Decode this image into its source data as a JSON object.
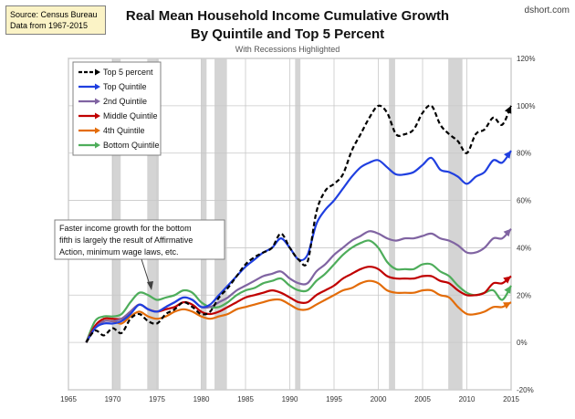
{
  "source": {
    "line1": "Source: Census Bureau",
    "line2": "Data from 1967-2015"
  },
  "brand": "dshort.com",
  "chart_data": {
    "type": "line",
    "title": "Real Mean Household Income Cumulative Growth",
    "title_line2": "By Quintile and Top 5 Percent",
    "subtitle": "With Recessions Highlighted",
    "xlim": [
      1965,
      2015
    ],
    "ylim": [
      -20,
      120
    ],
    "x_ticks": [
      "1965",
      "1970",
      "1975",
      "1980",
      "1985",
      "1990",
      "1995",
      "2000",
      "2005",
      "2010",
      "2015"
    ],
    "y_ticks": [
      "-20%",
      "0%",
      "20%",
      "40%",
      "60%",
      "80%",
      "100%",
      "120%"
    ],
    "y_axis_side": "right",
    "grid": true,
    "legend_position": "top-left",
    "recessions": [
      [
        1969.9,
        1970.9
      ],
      [
        1973.9,
        1975.2
      ],
      [
        1980.0,
        1980.6
      ],
      [
        1981.5,
        1982.9
      ],
      [
        1990.6,
        1991.2
      ],
      [
        2001.2,
        2001.9
      ],
      [
        2007.9,
        2009.5
      ]
    ],
    "annotation": [
      "Faster income growth  for the bottom",
      "fifth is largely the result of Affirmative",
      "Action, minimum wage laws, etc."
    ],
    "x": [
      1967,
      1968,
      1969,
      1970,
      1971,
      1972,
      1973,
      1974,
      1975,
      1976,
      1977,
      1978,
      1979,
      1980,
      1981,
      1982,
      1983,
      1984,
      1985,
      1986,
      1987,
      1988,
      1989,
      1990,
      1991,
      1992,
      1993,
      1994,
      1995,
      1996,
      1997,
      1998,
      1999,
      2000,
      2001,
      2002,
      2003,
      2004,
      2005,
      2006,
      2007,
      2008,
      2009,
      2010,
      2011,
      2012,
      2013,
      2014,
      2015
    ],
    "series": [
      {
        "name": "Top 5 percent",
        "color": "#000000",
        "dash": true,
        "values": [
          0,
          5,
          3,
          6,
          4,
          10,
          12,
          9,
          8,
          12,
          14,
          17,
          15,
          12,
          13,
          19,
          23,
          28,
          33,
          36,
          38,
          40,
          46,
          40,
          35,
          34,
          55,
          64,
          67,
          71,
          81,
          88,
          95,
          100,
          97,
          88,
          88,
          90,
          97,
          100,
          92,
          88,
          85,
          80,
          88,
          90,
          95,
          92,
          100
        ]
      },
      {
        "name": "Top Quintile",
        "color": "#1f3fe0",
        "values": [
          0,
          6,
          8,
          8,
          9,
          12,
          16,
          14,
          13,
          15,
          17,
          19,
          18,
          15,
          16,
          20,
          24,
          28,
          32,
          35,
          38,
          40,
          44,
          40,
          35,
          37,
          50,
          56,
          60,
          65,
          70,
          74,
          76,
          77,
          74,
          71,
          71,
          72,
          75,
          78,
          73,
          72,
          70,
          67,
          70,
          72,
          77,
          76,
          81
        ]
      },
      {
        "name": "2nd Quintile",
        "color": "#8064a2",
        "values": [
          0,
          6,
          9,
          9,
          10,
          13,
          16,
          14,
          13,
          15,
          17,
          19,
          18,
          15,
          15,
          17,
          19,
          22,
          24,
          26,
          28,
          29,
          30,
          27,
          25,
          25,
          30,
          33,
          37,
          40,
          43,
          45,
          47,
          46,
          44,
          43,
          44,
          44,
          45,
          46,
          44,
          43,
          41,
          38,
          38,
          40,
          44,
          44,
          48
        ]
      },
      {
        "name": "Middle Quintile",
        "color": "#c00000",
        "values": [
          0,
          7,
          10,
          10,
          10,
          13,
          16,
          14,
          13,
          14,
          15,
          17,
          16,
          13,
          12,
          13,
          15,
          17,
          19,
          20,
          21,
          22,
          21,
          19,
          17,
          17,
          20,
          22,
          24,
          27,
          29,
          31,
          32,
          31,
          28,
          27,
          27,
          27,
          28,
          28,
          26,
          25,
          22,
          20,
          20,
          21,
          25,
          25,
          28
        ]
      },
      {
        "name": "4th Quintile",
        "color": "#e36c09",
        "values": [
          0,
          6,
          9,
          9,
          8,
          11,
          13,
          11,
          10,
          11,
          13,
          14,
          13,
          11,
          10,
          11,
          12,
          14,
          15,
          16,
          17,
          18,
          18,
          16,
          14,
          14,
          16,
          18,
          20,
          22,
          23,
          25,
          26,
          25,
          22,
          21,
          21,
          21,
          22,
          22,
          20,
          19,
          15,
          12,
          12,
          13,
          15,
          15,
          17
        ]
      },
      {
        "name": "Bottom Quintile",
        "color": "#4ead5b",
        "values": [
          0,
          9,
          11,
          11,
          12,
          17,
          21,
          20,
          18,
          19,
          20,
          22,
          21,
          17,
          15,
          15,
          17,
          20,
          22,
          23,
          25,
          26,
          27,
          24,
          22,
          22,
          26,
          29,
          33,
          37,
          40,
          42,
          43,
          40,
          34,
          31,
          31,
          31,
          33,
          33,
          30,
          28,
          24,
          21,
          20,
          21,
          22,
          18,
          24
        ]
      }
    ]
  }
}
